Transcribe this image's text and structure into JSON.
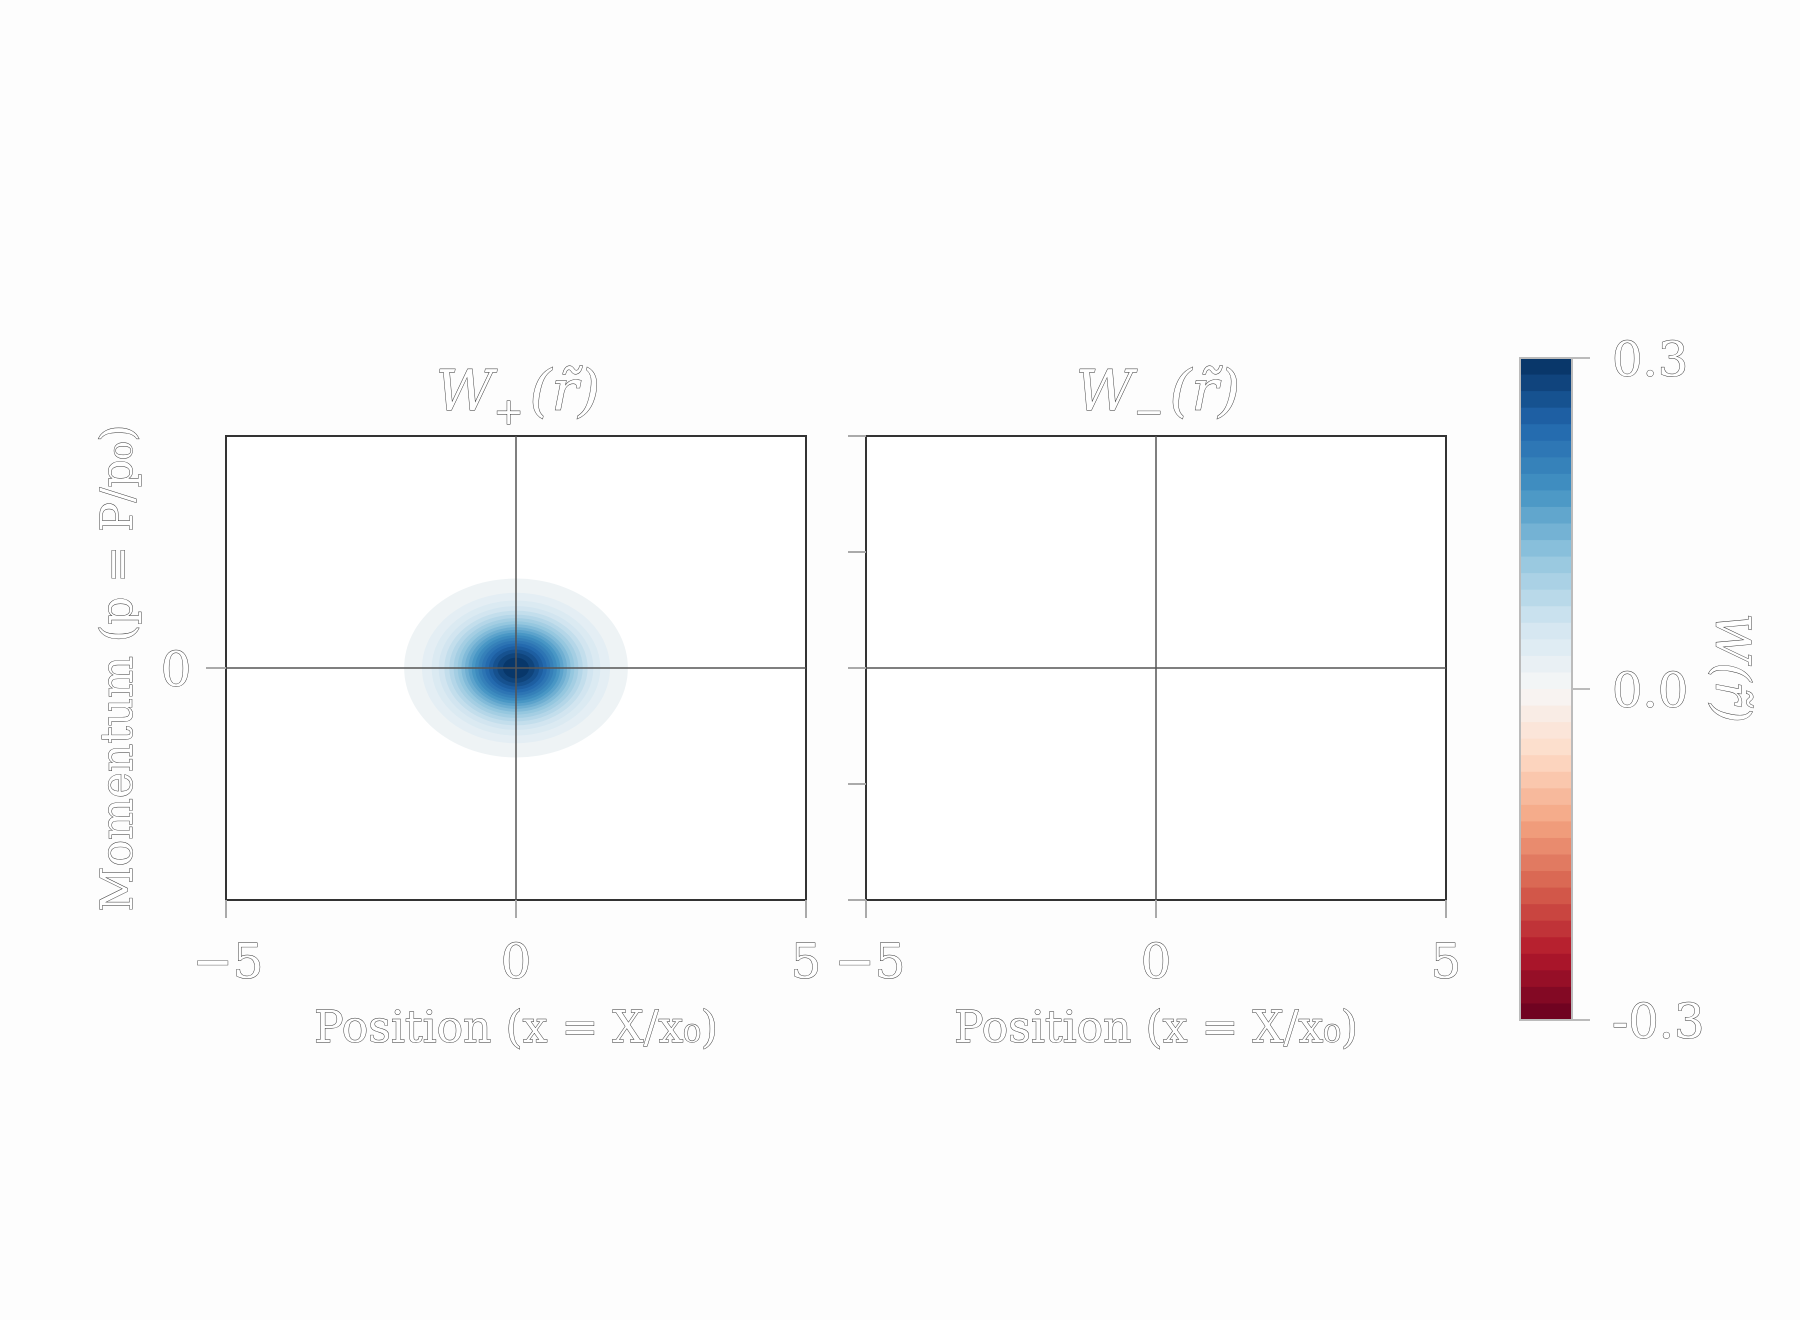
{
  "chart_data": [
    {
      "type": "heatmap",
      "title": "W+(r̃)",
      "title_main": "W",
      "title_sub": "+",
      "title_arg": "(r̃)",
      "xlabel": "Position (x = X/x₀)",
      "ylabel": "Momentum (p = P/p₀)",
      "xlim": [
        -5,
        5
      ],
      "ylim": [
        -5,
        5
      ],
      "x_ticks": [
        "−5",
        "0",
        "5"
      ],
      "y_ticks": [
        "0"
      ],
      "grid": "lines at x=0 and p=0",
      "distribution": {
        "kind": "gaussian",
        "center": [
          0,
          0
        ],
        "peak": 0.3,
        "sigma": 0.71
      },
      "colormap": "RdBu"
    },
    {
      "type": "heatmap",
      "title": "W−(r̃)",
      "title_main": "W",
      "title_sub": "−",
      "title_arg": "(r̃)",
      "xlabel": "Position (x = X/x₀)",
      "ylabel": "",
      "xlim": [
        -5,
        5
      ],
      "ylim": [
        -5,
        5
      ],
      "x_ticks": [
        "−5",
        "0",
        "5"
      ],
      "y_ticks": [],
      "grid": "lines at x=0 and p=0",
      "distribution": {
        "kind": "zero",
        "value": 0
      },
      "colormap": "RdBu"
    }
  ],
  "colorbar": {
    "label": "W(r̃)",
    "range": [
      -0.3,
      0.3
    ],
    "ticks": [
      "0.3",
      "0.0",
      "-0.3"
    ],
    "colors": [
      "#053061",
      "#2166ac",
      "#4393c3",
      "#92c5de",
      "#d1e5f0",
      "#f7f7f7",
      "#fddbc7",
      "#f4a582",
      "#d6604d",
      "#b2182b",
      "#67001f"
    ]
  }
}
